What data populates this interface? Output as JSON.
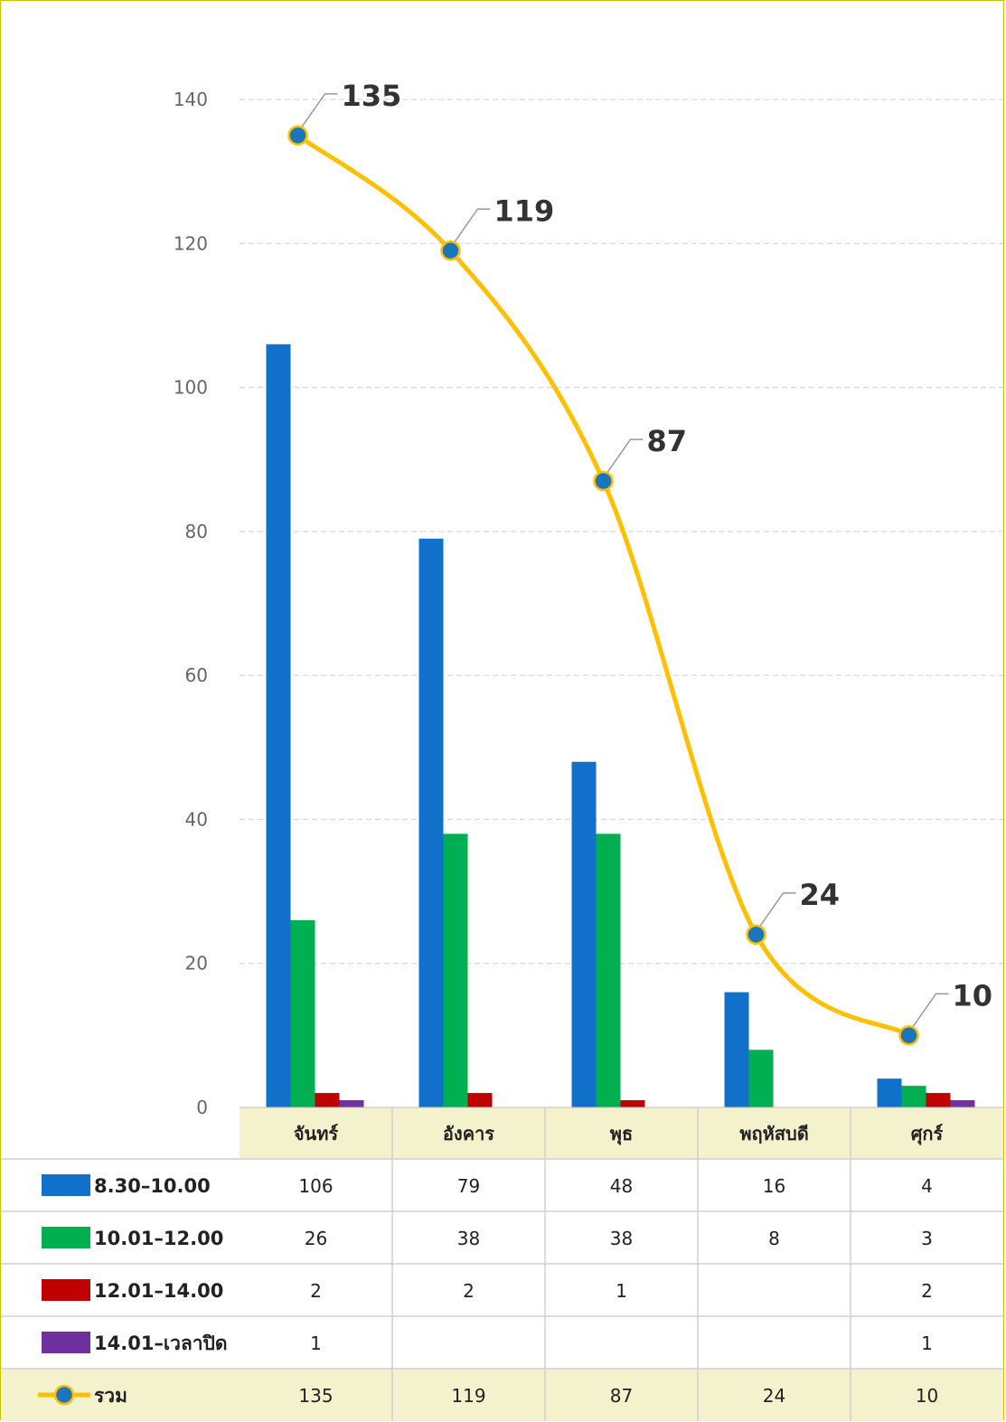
{
  "chart_data": {
    "type": "bar",
    "categories": [
      "จันทร์",
      "อังคาร",
      "พุธ",
      "พฤหัสบดี",
      "ศุกร์"
    ],
    "series": [
      {
        "name": "8.30–10.00",
        "type": "bar",
        "color": "#1170c9",
        "values": [
          106,
          79,
          48,
          16,
          4
        ]
      },
      {
        "name": "10.01–12.00",
        "type": "bar",
        "color": "#00b050",
        "values": [
          26,
          38,
          38,
          8,
          3
        ]
      },
      {
        "name": "12.01–14.00",
        "type": "bar",
        "color": "#c00000",
        "values": [
          2,
          2,
          1,
          null,
          2
        ]
      },
      {
        "name": "14.01–เวลาปิด",
        "type": "bar",
        "color": "#7030a0",
        "values": [
          1,
          null,
          null,
          null,
          1
        ]
      },
      {
        "name": "รวม",
        "type": "line",
        "color": "#ffc000",
        "marker_color": "#1b75bb",
        "values": [
          135,
          119,
          87,
          24,
          10
        ]
      }
    ],
    "y_ticks": [
      0,
      20,
      40,
      60,
      80,
      100,
      120,
      140
    ],
    "ylim": [
      0,
      140
    ],
    "grid": true,
    "legend": "data-table"
  }
}
